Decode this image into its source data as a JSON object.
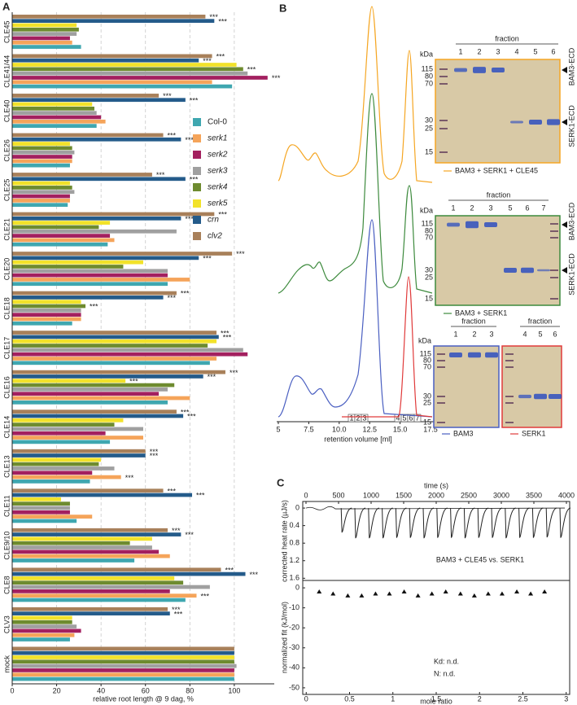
{
  "panel_labels": [
    "A",
    "B",
    "C"
  ],
  "chart_data": [
    {
      "type": "bar",
      "orientation": "horizontal",
      "categories": [
        "CLE45",
        "CLE41/44",
        "CLE40",
        "CLE26",
        "CLE25",
        "CLE21",
        "CLE20",
        "CLE18",
        "CLE17",
        "CLE16",
        "CLE14",
        "CLE13",
        "CLE11",
        "CLE9/10",
        "CLE8",
        "CLV3",
        "mock"
      ],
      "series": [
        {
          "name": "Col-0",
          "color": "#3fa7b0",
          "values": [
            31,
            99,
            38,
            26,
            25,
            43,
            70,
            27,
            89,
            70,
            44,
            35,
            29,
            55,
            78,
            26,
            100
          ]
        },
        {
          "name": "serk1",
          "color": "#f5a45a",
          "values": [
            27,
            90,
            42,
            27,
            26,
            46,
            80,
            31,
            92,
            80,
            59,
            49,
            36,
            71,
            83,
            28,
            100
          ],
          "significance": [
            null,
            null,
            null,
            null,
            null,
            null,
            null,
            null,
            null,
            null,
            null,
            "***",
            null,
            null,
            "***",
            null,
            null
          ]
        },
        {
          "name": "serk2",
          "color": "#a3205f",
          "values": [
            26,
            115,
            40,
            27,
            26,
            44,
            70,
            31,
            106,
            66,
            42,
            36,
            26,
            66,
            71,
            31,
            100
          ],
          "significance": [
            null,
            "***",
            null,
            null,
            null,
            null,
            null,
            null,
            null,
            null,
            null,
            null,
            null,
            null,
            null,
            null,
            null
          ]
        },
        {
          "name": "serk3",
          "color": "#a0a0a0",
          "values": [
            29,
            106,
            38,
            28,
            28,
            74,
            70,
            31,
            104,
            70,
            59,
            46,
            26,
            63,
            89,
            29,
            101
          ]
        },
        {
          "name": "serk4",
          "color": "#6e8b2f",
          "values": [
            30,
            104,
            37,
            27,
            27,
            39,
            50,
            33,
            88,
            73,
            46,
            39,
            26,
            53,
            77,
            27,
            100
          ],
          "significance": [
            null,
            "***",
            null,
            null,
            null,
            null,
            null,
            "***",
            null,
            null,
            null,
            null,
            null,
            null,
            null,
            null,
            null
          ]
        },
        {
          "name": "serk5",
          "color": "#f2e22a",
          "values": [
            29,
            101,
            36,
            26,
            26,
            44,
            59,
            31,
            92,
            51,
            50,
            40,
            22,
            63,
            73,
            27,
            100
          ],
          "significance": [
            null,
            null,
            null,
            null,
            null,
            null,
            null,
            null,
            null,
            "***",
            null,
            null,
            null,
            null,
            null,
            null,
            null
          ]
        },
        {
          "name": "crn",
          "color": "#245b8a",
          "values": [
            91,
            84,
            78,
            76,
            78,
            76,
            84,
            68,
            93,
            86,
            77,
            60,
            81,
            76,
            105,
            71,
            100
          ],
          "significance": [
            "***",
            "***",
            "***",
            "***",
            "***",
            "***",
            "***",
            "***",
            "***",
            "***",
            "***",
            "***",
            "***",
            "***",
            "***",
            "***",
            null
          ]
        },
        {
          "name": "clv2",
          "color": "#a8805a",
          "values": [
            87,
            90,
            66,
            68,
            63,
            91,
            99,
            74,
            92,
            96,
            74,
            60,
            68,
            70,
            94,
            70,
            100
          ],
          "significance": [
            "***",
            "***",
            "***",
            "***",
            "***",
            "***",
            "***",
            "***",
            "***",
            "***",
            "***",
            "***",
            "***",
            "***",
            "***",
            "***",
            null
          ]
        }
      ],
      "xlabel": "relative root length @ 9 dag, %",
      "xlim": [
        0,
        118
      ],
      "xticks": [
        0,
        20,
        40,
        60,
        80,
        100
      ],
      "grid": true,
      "legend": "upper right"
    },
    {
      "type": "peaks",
      "xlabel": "time (s)",
      "ylabel": "corrected heat rate (µJ/s)",
      "x": [
        540,
        750,
        960,
        1170,
        1380,
        1590,
        1800,
        2010,
        2220,
        2430,
        2640,
        2850,
        3060,
        3270,
        3480,
        3690,
        3900
      ],
      "values": [
        0.55,
        0.68,
        0.68,
        0.68,
        0.67,
        0.67,
        0.68,
        0.67,
        0.67,
        0.68,
        0.67,
        0.67,
        0.68,
        0.67,
        0.67,
        0.66,
        0.67
      ],
      "xlim": [
        -50,
        4050
      ],
      "xticks": [
        0,
        500,
        1000,
        1500,
        2000,
        2500,
        3000,
        3500,
        4000
      ],
      "ylim": [
        -0.15,
        1.65
      ],
      "yticks": [
        0,
        0.4,
        0.8,
        1.2,
        1.6
      ],
      "y_inverted": true,
      "color": "#222222",
      "annotation": "BAM3 + CLE45 vs. SERK1"
    },
    {
      "type": "scatter",
      "xlabel": "mole ratio",
      "ylabel": "normalized fit (kJ/mol)",
      "x": [
        0.15,
        0.31,
        0.48,
        0.64,
        0.8,
        0.96,
        1.13,
        1.29,
        1.45,
        1.61,
        1.78,
        1.94,
        2.1,
        2.26,
        2.43,
        2.59,
        2.75
      ],
      "values": [
        -2,
        -3,
        -4,
        -4,
        -3,
        -3,
        -2,
        -4,
        -3,
        -2,
        -3,
        -4,
        -3,
        -3,
        -2,
        -3,
        -2
      ],
      "xlim": [
        -0.04,
        3.04
      ],
      "xticks": [
        0,
        0.5,
        1,
        1.5,
        2,
        2.5,
        3
      ],
      "ylim": [
        -53.3,
        3.7
      ],
      "yticks": [
        0,
        -10,
        -20,
        -30,
        -40,
        -50
      ],
      "color": "#111111",
      "annotations": [
        "Kd: n.d.",
        "N: n.d."
      ]
    }
  ],
  "panel_b": {
    "chromatogram": {
      "xlabel": "retention volume [ml]",
      "xlim": [
        4.9,
        17.9
      ],
      "xticks": [
        5,
        7.5,
        {
          "value": 10,
          "label": "10.0"
        },
        12.5,
        {
          "value": 15,
          "label": "15.0"
        },
        17.5
      ],
      "fractions": [
        "1",
        "2",
        "3",
        "4",
        "5",
        "6",
        "7"
      ]
    },
    "gels": [
      {
        "unit": "kDa",
        "header": "fraction",
        "lanes": [
          "1",
          "2",
          "3",
          "4",
          "5",
          "6"
        ],
        "markers": [
          "115",
          "80",
          "70",
          "30",
          "25",
          "15"
        ],
        "band_labels": [
          "BAM3-ECD",
          "SERK1-ECD"
        ],
        "caption": "BAM3 + SERK1 + CLE45",
        "color": "#f5a623"
      },
      {
        "unit": "kDa",
        "header": "fraction",
        "lanes": [
          "1",
          "2",
          "3",
          "5",
          "6",
          "7"
        ],
        "markers": [
          "115",
          "80",
          "70",
          "30",
          "25",
          "15"
        ],
        "band_labels": [
          "BAM3-ECD",
          "SERK1-ECD"
        ],
        "caption": "BAM3 + SERK1",
        "color": "#3d8a3d"
      },
      {
        "unit": "kDa",
        "header": "fraction",
        "lanes": [
          "1",
          "2",
          "3"
        ],
        "markers": [
          "115",
          "80",
          "70",
          "30",
          "25",
          "15"
        ],
        "caption": "BAM3",
        "color": "#4a5fc1"
      },
      {
        "header": "fraction",
        "lanes": [
          "4",
          "5",
          "6"
        ],
        "caption": "SERK1",
        "color": "#e03a3a"
      }
    ]
  }
}
